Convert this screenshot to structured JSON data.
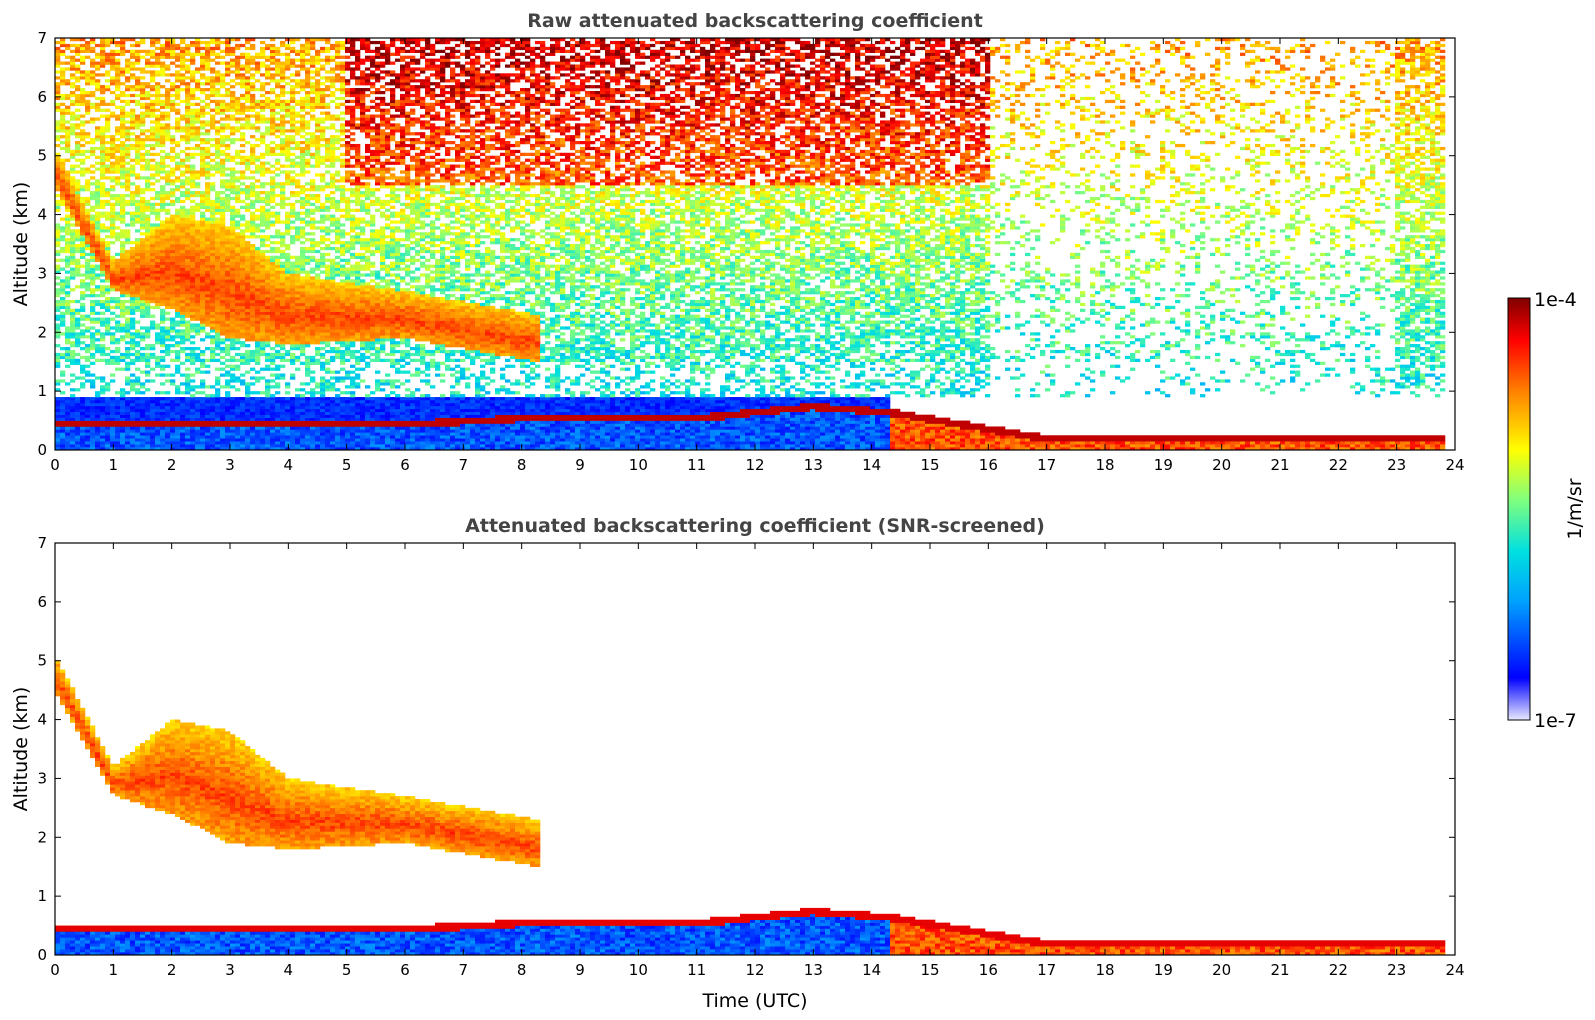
{
  "chart_data": [
    {
      "type": "heatmap",
      "title": "Raw attenuated backscattering coefficient",
      "xlabel": "",
      "ylabel": "Altitude (km)",
      "xlim": [
        0,
        24
      ],
      "ylim": [
        0,
        7
      ],
      "xticks": [
        "0",
        "1",
        "2",
        "3",
        "4",
        "5",
        "6",
        "7",
        "8",
        "9",
        "10",
        "11",
        "12",
        "13",
        "14",
        "15",
        "16",
        "17",
        "18",
        "19",
        "20",
        "21",
        "22",
        "23",
        "24"
      ],
      "yticks": [
        "0",
        "1",
        "2",
        "3",
        "4",
        "5",
        "6",
        "7"
      ],
      "features": [
        {
          "name": "boundary layer",
          "time_start": 0,
          "time_end": 23.8,
          "altitude_top": [
            0.5,
            0.5,
            0.5,
            0.5,
            0.6,
            0.6,
            0.6,
            0.8,
            0.7,
            0.25,
            0.25
          ],
          "time_points": [
            0,
            2,
            4,
            6,
            8,
            10,
            11,
            13,
            14.3,
            17,
            23.8
          ]
        },
        {
          "name": "descending cloud layer",
          "time_start": 0,
          "time_end": 8.3,
          "altitude_top": [
            5.1,
            3.2,
            4.0,
            3.8,
            3.0,
            2.7,
            2.3
          ],
          "altitude_bottom": [
            4.5,
            2.7,
            2.4,
            1.9,
            1.8,
            1.9,
            1.5
          ],
          "time_points": [
            0,
            1,
            2,
            3,
            4,
            6,
            8.3
          ]
        },
        {
          "name": "upper noise",
          "time_start": 0,
          "time_end": 23.8,
          "altitude_bottom": 1.0
        }
      ]
    },
    {
      "type": "heatmap",
      "title": "Attenuated backscattering coefficient (SNR-screened)",
      "xlabel": "Time (UTC)",
      "ylabel": "Altitude (km)",
      "xlim": [
        0,
        24
      ],
      "ylim": [
        0,
        7
      ],
      "xticks": [
        "0",
        "1",
        "2",
        "3",
        "4",
        "5",
        "6",
        "7",
        "8",
        "9",
        "10",
        "11",
        "12",
        "13",
        "14",
        "15",
        "16",
        "17",
        "18",
        "19",
        "20",
        "21",
        "22",
        "23",
        "24"
      ],
      "yticks": [
        "0",
        "1",
        "2",
        "3",
        "4",
        "5",
        "6",
        "7"
      ]
    }
  ],
  "colorbar": {
    "label": "1/m/sr",
    "max_label": "1e-4",
    "min_label": "1e-7",
    "scale": "log",
    "colors": [
      "#e8e8ff",
      "#0000ff",
      "#00a0ff",
      "#00e0e0",
      "#7fff7f",
      "#ffff00",
      "#ff8000",
      "#ff0000",
      "#800000"
    ]
  }
}
